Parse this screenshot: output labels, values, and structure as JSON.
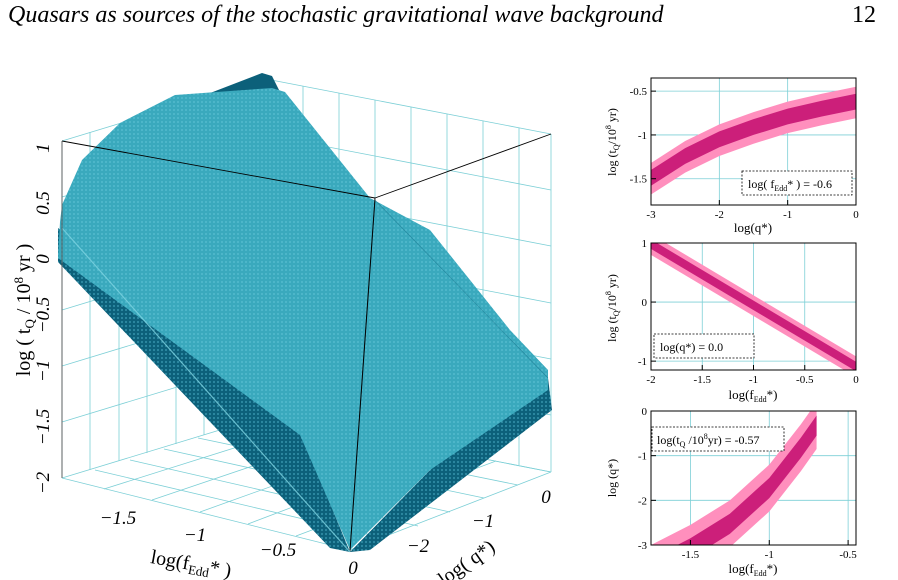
{
  "header": {
    "title": "Quasars as sources of the stochastic gravitational wave background",
    "page_number": "12"
  },
  "colors": {
    "surface": "#3aa9bd",
    "surface_dark": "#0c607a",
    "surface_light": "#7ed4e2",
    "grid": "#7ccfd6",
    "band_inner": "#cc1f7a",
    "band_outer": "#ff8fbd"
  },
  "chart_data": [
    {
      "type": "surface",
      "panel": "3d",
      "zlabel": "log ( t_Q / 10^8 yr )",
      "z_ticks": [
        "1",
        "0.5",
        "0",
        "−0.5",
        "−1",
        "−1.5",
        "−2"
      ],
      "xlabel": "log(f_Edd*)",
      "x_ticks": [
        "−1.5",
        "−1",
        "−0.5",
        "0"
      ],
      "ylabel": "log( q*)",
      "y_ticks": [
        "−2",
        "−1",
        "0"
      ],
      "xlim": [
        -2,
        0
      ],
      "ylim": [
        -3,
        0
      ],
      "zlim": [
        -2,
        1
      ]
    },
    {
      "type": "area",
      "panel": "top",
      "xlabel": "log(q*)",
      "ylabel": "log (t_Q/10^8 yr)",
      "annotation": "log( f_Edd* ) = -0.6",
      "x_ticks": [
        "-3",
        "-2",
        "-1",
        "0"
      ],
      "y_ticks": [
        "-0.5",
        "-1",
        "-1.5"
      ],
      "xlim": [
        -3,
        0
      ],
      "ylim": [
        -1.8,
        -0.35
      ],
      "x": [
        -3,
        -2.5,
        -2,
        -1.5,
        -1,
        -0.5,
        0
      ],
      "outer_upper": [
        -1.32,
        -1.07,
        -0.88,
        -0.74,
        -0.62,
        -0.53,
        -0.45
      ],
      "inner_upper": [
        -1.4,
        -1.15,
        -0.96,
        -0.82,
        -0.7,
        -0.61,
        -0.53
      ],
      "inner_lower": [
        -1.58,
        -1.33,
        -1.14,
        -1.0,
        -0.88,
        -0.79,
        -0.71
      ],
      "outer_lower": [
        -1.68,
        -1.43,
        -1.24,
        -1.1,
        -0.98,
        -0.89,
        -0.81
      ]
    },
    {
      "type": "area",
      "panel": "middle",
      "xlabel": "log(f_Edd*)",
      "ylabel": "log (t_Q/10^8 yr)",
      "annotation": "log(q*) = 0.0",
      "x_ticks": [
        "-2",
        "-1.5",
        "-1",
        "-0.5",
        "0"
      ],
      "y_ticks": [
        "1",
        "0",
        "-1"
      ],
      "xlim": [
        -2,
        0
      ],
      "ylim": [
        -1.15,
        1
      ],
      "x": [
        -2,
        0
      ],
      "outer_upper": [
        1.15,
        -0.92
      ],
      "inner_upper": [
        1.06,
        -1.01
      ],
      "inner_lower": [
        0.9,
        -1.17
      ],
      "outer_lower": [
        0.8,
        -1.27
      ]
    },
    {
      "type": "area",
      "panel": "bottom",
      "xlabel": "log(f_Edd*)",
      "ylabel": "log (q*)",
      "annotation": "log(t_Q /10^8yr) = -0.57",
      "x_ticks": [
        "-1.5",
        "-1",
        "-0.5"
      ],
      "y_ticks": [
        "0",
        "-1",
        "-2",
        "-3"
      ],
      "xlim": [
        -1.75,
        -0.45
      ],
      "ylim": [
        -3,
        0
      ],
      "x": [
        -1.75,
        -1.5,
        -1.25,
        -1.0,
        -0.8,
        -0.7
      ],
      "outer_upper": [
        -3.0,
        -2.55,
        -2.0,
        -1.2,
        -0.3,
        0.2
      ],
      "inner_upper": [
        -3.3,
        -2.85,
        -2.3,
        -1.5,
        -0.6,
        -0.1
      ],
      "inner_lower": [
        -3.75,
        -3.3,
        -2.75,
        -1.95,
        -1.05,
        -0.55
      ],
      "outer_lower": [
        -4.05,
        -3.6,
        -3.05,
        -2.25,
        -1.35,
        -0.85
      ]
    }
  ]
}
